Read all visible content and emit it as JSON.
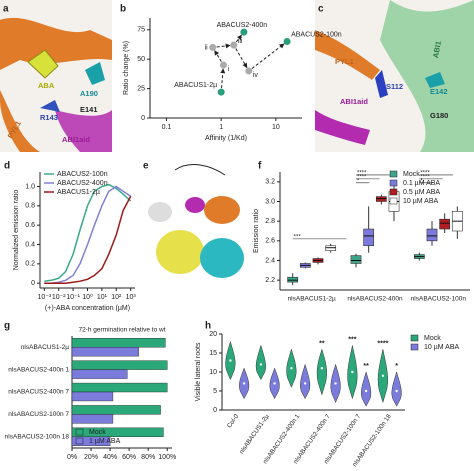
{
  "images": {
    "a": {
      "panel_label": "a",
      "labels": [
        "ABA",
        "A190",
        "E141",
        "PYL1",
        "R143",
        "ABI1aid"
      ]
    },
    "c": {
      "panel_label": "c",
      "labels": [
        "PYL1",
        "ABI1",
        "S112",
        "E142",
        "ABI1aid",
        "G180"
      ]
    },
    "e": {
      "panel_label": "e"
    }
  },
  "chart_data": [
    {
      "type": "scatter",
      "panel_label": "b",
      "xlabel": "Affinity (1/Kd)",
      "ylabel": "Ratio change (%)",
      "x": [
        1,
        2.6,
        16,
        1.1,
        0.7,
        1.7,
        3.2
      ],
      "values": [
        22,
        73,
        65,
        45,
        60,
        62,
        40
      ],
      "point_labels": [
        "ABACUS1-2µ",
        "ABACUS2-400n",
        "ABACUS2-100n",
        "i",
        "ii",
        "iii",
        "iv"
      ],
      "colors": [
        "#2a9d7c",
        "#2a9d7c",
        "#2a9d7c",
        "#aaaaaa",
        "#aaaaaa",
        "#aaaaaa",
        "#aaaaaa"
      ],
      "xlim": [
        0.05,
        30
      ],
      "xlog": true,
      "xticks": [
        0.1,
        1,
        10
      ],
      "ylim": [
        0,
        85
      ],
      "yticks": [
        0,
        25,
        50,
        75
      ]
    },
    {
      "type": "line",
      "panel_label": "d",
      "xlabel": "(+)-ABA concentration (µM)",
      "ylabel": "Normalized emission ratio",
      "x": [
        0.001,
        0.003,
        0.01,
        0.03,
        0.1,
        0.3,
        1,
        3,
        10,
        30,
        100,
        300,
        1000
      ],
      "series": [
        {
          "name": "ABACUS2-100n",
          "color": "#3aaa8a",
          "values": [
            0.02,
            0.03,
            0.05,
            0.12,
            0.3,
            0.55,
            0.8,
            0.95,
            1.0,
            1.02,
            0.98,
            0.92,
            0.85
          ]
        },
        {
          "name": "ABACUS2-400n",
          "color": "#8080d8",
          "values": [
            0,
            0,
            0.01,
            0.03,
            0.08,
            0.2,
            0.4,
            0.6,
            0.8,
            0.95,
            1.0,
            0.95,
            0.9
          ]
        },
        {
          "name": "ABACUS1-2µ",
          "color": "#a01818",
          "values": [
            0,
            0,
            0,
            0,
            0.01,
            0.02,
            0.04,
            0.08,
            0.15,
            0.3,
            0.5,
            0.75,
            0.9
          ]
        }
      ],
      "xlim": [
        0.0005,
        2000
      ],
      "xlog": true,
      "xticks": [
        {
          "value": 0.001,
          "label": "10⁻³"
        },
        {
          "value": 0.01,
          "label": "10⁻²"
        },
        {
          "value": 0.1,
          "label": "10⁻¹"
        },
        {
          "value": 1,
          "label": "10⁰"
        },
        {
          "value": 10,
          "label": "10¹"
        },
        {
          "value": 100,
          "label": "10²"
        },
        {
          "value": 1000,
          "label": "10³"
        }
      ],
      "ylim": [
        -0.05,
        1.15
      ],
      "yticks": [
        0,
        0.2,
        0.4,
        0.6,
        0.8,
        {
          "value": 1,
          "label": "1.0"
        }
      ]
    },
    {
      "type": "box",
      "panel_label": "f",
      "ylabel": "Emission ratio",
      "categories": [
        "nlsABACUS1-2µ",
        "nlsABACUS2-400n",
        "nlsABACUS2-100n"
      ],
      "series": [
        {
          "name": "Mock",
          "color": "#3aa58a",
          "values": [
            {
              "low": 2.15,
              "q1": 2.18,
              "median": 2.2,
              "q3": 2.23,
              "high": 2.27
            },
            {
              "low": 2.33,
              "q1": 2.37,
              "median": 2.4,
              "q3": 2.45,
              "high": 2.47
            },
            {
              "low": 2.4,
              "q1": 2.42,
              "median": 2.44,
              "q3": 2.46,
              "high": 2.48
            }
          ]
        },
        {
          "name": "0.1 µM ABA",
          "color": "#7b7bdc",
          "values": [
            {
              "low": 2.32,
              "q1": 2.33,
              "median": 2.35,
              "q3": 2.37,
              "high": 2.38
            },
            {
              "low": 2.48,
              "q1": 2.55,
              "median": 2.65,
              "q3": 2.72,
              "high": 2.95
            },
            {
              "low": 2.55,
              "q1": 2.6,
              "median": 2.65,
              "q3": 2.72,
              "high": 2.8
            }
          ]
        },
        {
          "name": "0.5 µM ABA",
          "color": "#b01c22",
          "values": [
            {
              "low": 2.36,
              "q1": 2.38,
              "median": 2.4,
              "q3": 2.42,
              "high": 2.43
            },
            {
              "low": 2.97,
              "q1": 3.0,
              "median": 3.03,
              "q3": 3.05,
              "high": 3.07
            },
            {
              "low": 2.68,
              "q1": 2.72,
              "median": 2.78,
              "q3": 2.82,
              "high": 2.88
            }
          ]
        },
        {
          "name": "10 µM ABA",
          "color": "#ffffff",
          "values": [
            {
              "low": 2.48,
              "q1": 2.5,
              "median": 2.53,
              "q3": 2.55,
              "high": 2.57
            },
            {
              "low": 2.8,
              "q1": 2.9,
              "median": 3.0,
              "q3": 3.1,
              "high": 3.2
            },
            {
              "low": 2.62,
              "q1": 2.7,
              "median": 2.8,
              "q3": 2.9,
              "high": 2.95
            }
          ]
        }
      ],
      "ylim": [
        2.1,
        3.3
      ],
      "yticks": [
        2.2,
        2.4,
        2.6,
        2.8,
        {
          "value": 3,
          "label": "3.0"
        },
        3.2
      ],
      "annotations": [
        "***",
        "****",
        "****",
        "*",
        "****",
        "****",
        "*"
      ]
    },
    {
      "type": "bar",
      "orientation": "horizontal",
      "panel_label": "g",
      "title": "72-h germination relative to wt",
      "categories": [
        "nlsABACUS1-2µ",
        "nlsABACUS2-400n 1",
        "nlsABACUS2-400n 7",
        "nlsABACUS2-100n 7",
        "nlsABACUS2-100n 18"
      ],
      "series": [
        {
          "name": "Mock",
          "color": "#2aa87a",
          "values": [
            98,
            100,
            100,
            93,
            96
          ]
        },
        {
          "name": "1 µM ABA",
          "color": "#7b7bdc",
          "values": [
            70,
            58,
            43,
            43,
            40
          ]
        }
      ],
      "xlim": [
        0,
        105
      ],
      "xticks": [
        {
          "value": 0,
          "label": "0%"
        },
        {
          "value": 20,
          "label": "20%"
        },
        {
          "value": 40,
          "label": "40%"
        },
        {
          "value": 60,
          "label": "60%"
        },
        {
          "value": 80,
          "label": "80%"
        },
        {
          "value": 100,
          "label": "100%"
        }
      ]
    },
    {
      "type": "violin",
      "panel_label": "h",
      "ylabel": "Visible lateral roots",
      "categories": [
        "Col-0",
        "nlsABACUS1-2µ",
        "nlsABACUS2-400n 1",
        "nlsABACUS2-400n 7",
        "nlsABACUS2-100n 7",
        "nlsABACUS2-100n 18"
      ],
      "series": [
        {
          "name": "Mock",
          "color": "#2aa87a",
          "values": [
            {
              "min": 8,
              "median": 13,
              "max": 18
            },
            {
              "min": 8,
              "median": 12,
              "max": 17
            },
            {
              "min": 6,
              "median": 11,
              "max": 16
            },
            {
              "min": 4,
              "median": 11,
              "max": 16
            },
            {
              "min": 3,
              "median": 10,
              "max": 17
            },
            {
              "min": 2,
              "median": 9,
              "max": 16
            }
          ]
        },
        {
          "name": "10 µM ABA",
          "color": "#7b7bdc",
          "values": [
            {
              "min": 3,
              "median": 7,
              "max": 11
            },
            {
              "min": 3,
              "median": 7,
              "max": 11
            },
            {
              "min": 3,
              "median": 7,
              "max": 12
            },
            {
              "min": 2,
              "median": 7,
              "max": 12
            },
            {
              "min": 1,
              "median": 5,
              "max": 10
            },
            {
              "min": 1,
              "median": 5,
              "max": 10
            }
          ]
        }
      ],
      "ylim": [
        0,
        20
      ],
      "yticks": [
        0,
        5,
        10,
        15,
        20
      ],
      "annotations": [
        "**",
        "***",
        "**",
        "****",
        "*"
      ]
    }
  ]
}
